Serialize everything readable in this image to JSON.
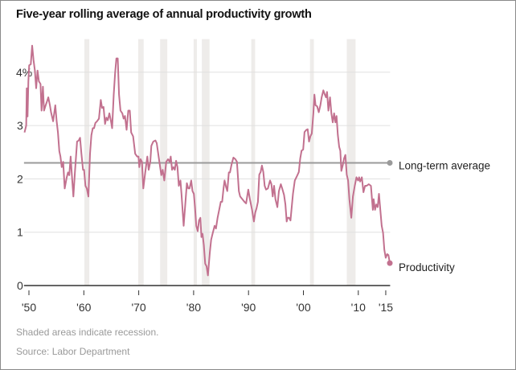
{
  "chart_data": {
    "type": "line",
    "title": "Five-year rolling average of annual productivity growth",
    "footnote": "Shaded areas indicate recession.",
    "source": "Source: Labor Department",
    "xlim": [
      1949.1,
      2015.8
    ],
    "ylim": [
      0,
      4.5
    ],
    "grid": true,
    "y_ticks": [
      {
        "value": 0,
        "label": "0"
      },
      {
        "value": 1,
        "label": "1"
      },
      {
        "value": 2,
        "label": "2"
      },
      {
        "value": 3,
        "label": "3"
      },
      {
        "value": 4,
        "label": "4%"
      }
    ],
    "x_ticks": [
      {
        "value": 1950,
        "label": "'50"
      },
      {
        "value": 1960,
        "label": "'60"
      },
      {
        "value": 1970,
        "label": "'70"
      },
      {
        "value": 1980,
        "label": "'80"
      },
      {
        "value": 1990,
        "label": "'90"
      },
      {
        "value": 2000,
        "label": "'00"
      },
      {
        "value": 2010,
        "label": "'10"
      },
      {
        "value": 2015,
        "label": "'15"
      }
    ],
    "recessions": [
      [
        1960.1,
        1961.0
      ],
      [
        1969.9,
        1970.9
      ],
      [
        1973.9,
        1975.2
      ],
      [
        1980.0,
        1980.6
      ],
      [
        1981.5,
        1982.9
      ],
      [
        1990.5,
        1991.2
      ],
      [
        2001.2,
        2001.9
      ],
      [
        2007.9,
        2009.5
      ]
    ],
    "colors": {
      "productivity": "#c2718f",
      "average": "#9a9a9a",
      "recession": "#eeecea",
      "grid": "#e0e0e0",
      "axis": "#333333"
    },
    "series": [
      {
        "name": "Productivity",
        "points": [
          [
            1949.2,
            2.87
          ],
          [
            1949.5,
            3.0
          ],
          [
            1949.6,
            3.7
          ],
          [
            1949.75,
            3.17
          ],
          [
            1949.9,
            3.83
          ],
          [
            1950.05,
            4.13
          ],
          [
            1950.34,
            4.15
          ],
          [
            1950.59,
            4.5
          ],
          [
            1950.83,
            4.23
          ],
          [
            1951.08,
            4.03
          ],
          [
            1951.32,
            3.7
          ],
          [
            1951.57,
            4.03
          ],
          [
            1951.81,
            3.83
          ],
          [
            1952.11,
            3.78
          ],
          [
            1952.3,
            3.28
          ],
          [
            1952.55,
            3.73
          ],
          [
            1952.75,
            3.28
          ],
          [
            1953.04,
            3.38
          ],
          [
            1953.28,
            3.45
          ],
          [
            1953.53,
            3.53
          ],
          [
            1953.82,
            3.38
          ],
          [
            1954.02,
            3.25
          ],
          [
            1954.41,
            3.08
          ],
          [
            1954.8,
            3.38
          ],
          [
            1955.05,
            3.08
          ],
          [
            1955.29,
            2.87
          ],
          [
            1955.54,
            2.52
          ],
          [
            1955.74,
            2.42
          ],
          [
            1955.98,
            2.22
          ],
          [
            1956.23,
            2.32
          ],
          [
            1956.52,
            1.82
          ],
          [
            1956.86,
            2.02
          ],
          [
            1957.11,
            2.12
          ],
          [
            1957.35,
            2.07
          ],
          [
            1957.6,
            2.42
          ],
          [
            1957.79,
            2.12
          ],
          [
            1958.09,
            1.67
          ],
          [
            1958.38,
            2.12
          ],
          [
            1958.77,
            2.7
          ],
          [
            1959.07,
            2.72
          ],
          [
            1959.31,
            2.77
          ],
          [
            1959.56,
            2.47
          ],
          [
            1959.85,
            2.17
          ],
          [
            1960.05,
            2.17
          ],
          [
            1960.29,
            1.87
          ],
          [
            1960.54,
            1.82
          ],
          [
            1960.83,
            1.67
          ],
          [
            1961.13,
            2.47
          ],
          [
            1961.37,
            2.82
          ],
          [
            1961.62,
            2.95
          ],
          [
            1961.86,
            2.95
          ],
          [
            1962.11,
            3.05
          ],
          [
            1962.4,
            3.08
          ],
          [
            1962.75,
            3.13
          ],
          [
            1963.09,
            3.48
          ],
          [
            1963.33,
            3.33
          ],
          [
            1963.58,
            3.35
          ],
          [
            1963.87,
            3.03
          ],
          [
            1964.12,
            3.15
          ],
          [
            1964.36,
            3.1
          ],
          [
            1964.66,
            3.23
          ],
          [
            1964.95,
            3.08
          ],
          [
            1965.15,
            2.95
          ],
          [
            1965.44,
            3.58
          ],
          [
            1965.69,
            3.98
          ],
          [
            1965.93,
            4.26
          ],
          [
            1966.18,
            4.26
          ],
          [
            1966.42,
            3.58
          ],
          [
            1966.67,
            3.28
          ],
          [
            1967.01,
            3.23
          ],
          [
            1967.25,
            3.13
          ],
          [
            1967.5,
            3.18
          ],
          [
            1967.79,
            2.92
          ],
          [
            1968.09,
            3.28
          ],
          [
            1968.38,
            3.28
          ],
          [
            1968.63,
            2.87
          ],
          [
            1968.97,
            2.8
          ],
          [
            1969.36,
            2.47
          ],
          [
            1969.71,
            2.42
          ],
          [
            1969.95,
            2.42
          ],
          [
            1970.1,
            2.22
          ],
          [
            1970.34,
            2.37
          ],
          [
            1970.59,
            2.32
          ],
          [
            1970.83,
            1.82
          ],
          [
            1971.18,
            2.12
          ],
          [
            1971.57,
            2.42
          ],
          [
            1971.81,
            2.17
          ],
          [
            1972.11,
            2.32
          ],
          [
            1972.3,
            2.62
          ],
          [
            1972.65,
            2.7
          ],
          [
            1973.04,
            2.72
          ],
          [
            1973.28,
            2.67
          ],
          [
            1973.77,
            2.32
          ],
          [
            1974.12,
            2.07
          ],
          [
            1974.36,
            2.17
          ],
          [
            1974.66,
            1.97
          ],
          [
            1975.0,
            2.32
          ],
          [
            1975.34,
            2.37
          ],
          [
            1975.64,
            2.32
          ],
          [
            1975.83,
            2.42
          ],
          [
            1976.08,
            2.17
          ],
          [
            1976.32,
            2.22
          ],
          [
            1976.57,
            2.17
          ],
          [
            1976.81,
            2.34
          ],
          [
            1977.06,
            2.22
          ],
          [
            1977.3,
            1.87
          ],
          [
            1977.6,
            1.97
          ],
          [
            1977.79,
            1.72
          ],
          [
            1978.19,
            1.12
          ],
          [
            1978.48,
            1.52
          ],
          [
            1978.77,
            1.92
          ],
          [
            1979.02,
            1.82
          ],
          [
            1979.26,
            1.82
          ],
          [
            1979.56,
            1.97
          ],
          [
            1979.8,
            1.77
          ],
          [
            1980.05,
            1.72
          ],
          [
            1980.25,
            1.47
          ],
          [
            1980.49,
            1.12
          ],
          [
            1980.74,
            1.02
          ],
          [
            1980.98,
            1.22
          ],
          [
            1981.23,
            1.27
          ],
          [
            1981.42,
            0.91
          ],
          [
            1981.62,
            0.97
          ],
          [
            1981.86,
            0.76
          ],
          [
            1982.11,
            0.41
          ],
          [
            1982.35,
            0.36
          ],
          [
            1982.6,
            0.19
          ],
          [
            1982.94,
            0.61
          ],
          [
            1983.19,
            0.86
          ],
          [
            1983.43,
            0.96
          ],
          [
            1983.82,
            1.12
          ],
          [
            1984.07,
            1.07
          ],
          [
            1984.36,
            1.27
          ],
          [
            1984.66,
            1.42
          ],
          [
            1984.95,
            1.57
          ],
          [
            1985.2,
            1.57
          ],
          [
            1985.44,
            1.82
          ],
          [
            1985.64,
            1.97
          ],
          [
            1985.93,
            1.84
          ],
          [
            1986.13,
            1.77
          ],
          [
            1986.42,
            2.12
          ],
          [
            1986.62,
            2.12
          ],
          [
            1986.91,
            2.27
          ],
          [
            1987.25,
            2.4
          ],
          [
            1987.6,
            2.37
          ],
          [
            1987.89,
            2.32
          ],
          [
            1988.24,
            1.77
          ],
          [
            1988.48,
            1.67
          ],
          [
            1988.87,
            1.62
          ],
          [
            1989.26,
            1.57
          ],
          [
            1989.56,
            1.54
          ],
          [
            1989.95,
            1.8
          ],
          [
            1990.25,
            1.62
          ],
          [
            1990.64,
            1.42
          ],
          [
            1990.98,
            1.2
          ],
          [
            1991.23,
            1.37
          ],
          [
            1991.47,
            1.45
          ],
          [
            1991.72,
            1.57
          ],
          [
            1991.96,
            2.08
          ],
          [
            1992.21,
            2.13
          ],
          [
            1992.45,
            2.25
          ],
          [
            1992.7,
            2.13
          ],
          [
            1992.94,
            1.87
          ],
          [
            1993.19,
            1.8
          ],
          [
            1993.53,
            1.82
          ],
          [
            1993.92,
            1.97
          ],
          [
            1994.17,
            1.9
          ],
          [
            1994.41,
            1.67
          ],
          [
            1994.66,
            1.87
          ],
          [
            1994.9,
            1.62
          ],
          [
            1995.25,
            1.47
          ],
          [
            1995.54,
            1.77
          ],
          [
            1995.88,
            1.9
          ],
          [
            1996.13,
            1.82
          ],
          [
            1996.47,
            1.7
          ],
          [
            1996.72,
            1.52
          ],
          [
            1996.96,
            1.2
          ],
          [
            1997.11,
            1.27
          ],
          [
            1997.4,
            1.27
          ],
          [
            1997.65,
            1.22
          ],
          [
            1998.09,
            1.72
          ],
          [
            1998.43,
            1.97
          ],
          [
            1998.82,
            2.05
          ],
          [
            1999.17,
            2.13
          ],
          [
            1999.41,
            2.38
          ],
          [
            1999.66,
            2.53
          ],
          [
            1999.95,
            2.55
          ],
          [
            2000.2,
            2.88
          ],
          [
            2000.54,
            2.92
          ],
          [
            2000.78,
            2.93
          ],
          [
            2001.03,
            2.7
          ],
          [
            2001.27,
            2.8
          ],
          [
            2001.52,
            2.85
          ],
          [
            2001.81,
            3.23
          ],
          [
            2002.01,
            3.58
          ],
          [
            2002.21,
            3.38
          ],
          [
            2002.5,
            3.36
          ],
          [
            2002.79,
            3.25
          ],
          [
            2003.09,
            3.38
          ],
          [
            2003.33,
            3.53
          ],
          [
            2003.63,
            3.66
          ],
          [
            2003.87,
            3.59
          ],
          [
            2004.12,
            3.53
          ],
          [
            2004.31,
            3.63
          ],
          [
            2004.56,
            3.28
          ],
          [
            2004.85,
            3.53
          ],
          [
            2005.1,
            3.23
          ],
          [
            2005.34,
            3.06
          ],
          [
            2005.59,
            3.23
          ],
          [
            2005.83,
            3.06
          ],
          [
            2006.03,
            3.18
          ],
          [
            2006.27,
            2.83
          ],
          [
            2006.52,
            2.6
          ],
          [
            2006.72,
            2.53
          ],
          [
            2006.91,
            2.15
          ],
          [
            2007.16,
            2.25
          ],
          [
            2007.4,
            2.38
          ],
          [
            2007.65,
            2.45
          ],
          [
            2007.89,
            2.08
          ],
          [
            2008.14,
            1.97
          ],
          [
            2008.38,
            1.62
          ],
          [
            2008.73,
            1.27
          ],
          [
            2009.02,
            1.67
          ],
          [
            2009.36,
            1.87
          ],
          [
            2009.66,
            2.03
          ],
          [
            2009.95,
            1.97
          ],
          [
            2010.15,
            2.03
          ],
          [
            2010.34,
            1.95
          ],
          [
            2010.64,
            2.03
          ],
          [
            2010.93,
            1.75
          ],
          [
            2011.23,
            1.87
          ],
          [
            2011.52,
            1.87
          ],
          [
            2011.91,
            1.9
          ],
          [
            2012.3,
            1.87
          ],
          [
            2012.65,
            1.42
          ],
          [
            2012.79,
            1.62
          ],
          [
            2013.04,
            1.42
          ],
          [
            2013.28,
            1.52
          ],
          [
            2013.53,
            1.47
          ],
          [
            2013.77,
            1.72
          ],
          [
            2014.02,
            1.4
          ],
          [
            2014.26,
            1.12
          ],
          [
            2014.51,
            0.99
          ],
          [
            2014.75,
            0.67
          ],
          [
            2015.0,
            0.52
          ],
          [
            2015.25,
            0.59
          ],
          [
            2015.49,
            0.57
          ],
          [
            2015.74,
            0.42
          ]
        ]
      },
      {
        "name": "Long-term average",
        "points": [
          [
            1949.1,
            2.3
          ],
          [
            2015.74,
            2.3
          ]
        ]
      }
    ]
  }
}
